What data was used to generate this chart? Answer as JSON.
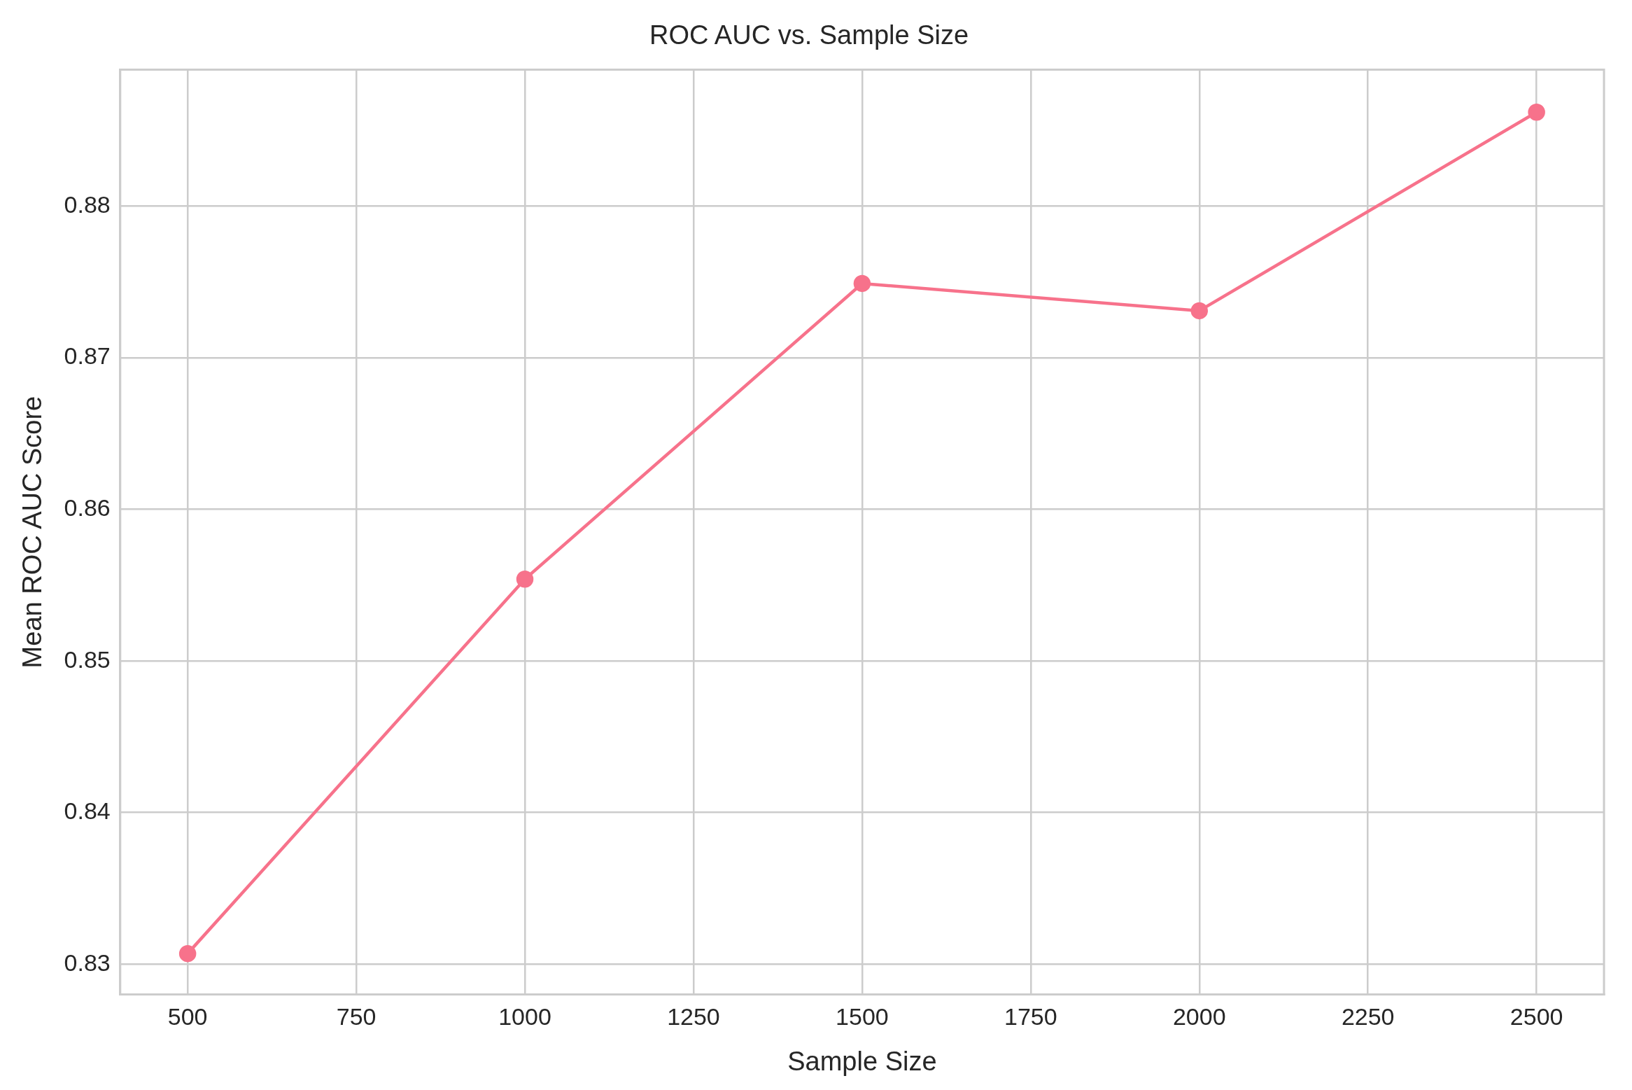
{
  "chart_data": {
    "type": "line",
    "title": "ROC AUC vs. Sample Size",
    "xlabel": "Sample Size",
    "ylabel": "Mean ROC AUC Score",
    "x": [
      500,
      1000,
      1500,
      2000,
      2500
    ],
    "series": [
      {
        "color": "#f7728b",
        "values": [
          0.8307,
          0.8554,
          0.8749,
          0.8731,
          0.8862
        ]
      }
    ],
    "xlim": [
      400,
      2600
    ],
    "ylim": [
      0.828,
      0.889
    ],
    "xticks": [
      500,
      750,
      1000,
      1250,
      1500,
      1750,
      2000,
      2250,
      2500
    ],
    "yticks": [
      0.83,
      0.84,
      0.85,
      0.86,
      0.87,
      0.88
    ],
    "grid": true,
    "marker": "circle",
    "line_style": "solid"
  }
}
